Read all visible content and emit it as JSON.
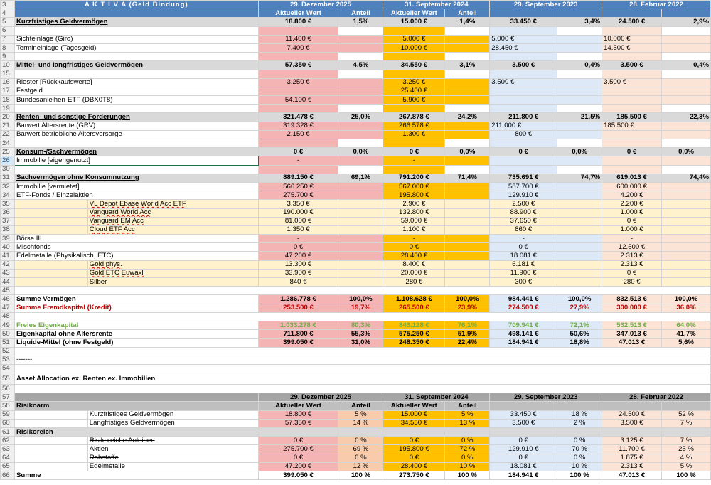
{
  "title": "A K T I V A (Geld Bindung)",
  "dates": [
    "29. Dezember 2025",
    "31. September 2024",
    "29. September 2023",
    "28. Februar 2022"
  ],
  "sub": {
    "wert": "Aktueller Wert",
    "anteil": "Anteil"
  },
  "r5": {
    "n": "Kurzfristiges Geldvermögen",
    "v": [
      "18.800 €",
      "1,5%",
      "15.000 €",
      "1,4%",
      "33.450 €",
      "3,4%",
      "24.500 €",
      "2,9%"
    ]
  },
  "r7": {
    "n": "Sichteinlage (Giro)",
    "v": [
      "11.400 €",
      "5.000 €",
      "5.000 €",
      "10.000 €"
    ]
  },
  "r8": {
    "n": "Termineinlage (Tagesgeld)",
    "v": [
      "7.400 €",
      "10.000 €",
      "28.450 €",
      "14.500 €"
    ]
  },
  "r10": {
    "n": "Mittel- und langfristiges Geldvermögen",
    "v": [
      "57.350 €",
      "4,5%",
      "34.550 €",
      "3,1%",
      "3.500 €",
      "0,4%",
      "3.500 €",
      "0,4%"
    ]
  },
  "r16": {
    "n": "Riester [Rückkaufswerte]",
    "v": [
      "3.250 €",
      "3.250 €",
      "3.500 €",
      "3.500 €"
    ]
  },
  "r17": {
    "n": "Festgeld",
    "v": [
      "25.400 €"
    ]
  },
  "r18": {
    "n": "Bundesanleihen-ETF (DBX0T8)",
    "v": [
      "54.100 €",
      "5.900 €"
    ]
  },
  "r20": {
    "n": "Renten- und sonstige Forderungen",
    "v": [
      "321.478 €",
      "25,0%",
      "267.878 €",
      "24,2%",
      "211.800 €",
      "21,5%",
      "185.500 €",
      "22,3%"
    ]
  },
  "r21": {
    "n": "Barwert Altersrente (GRV)",
    "v": [
      "319.328 €",
      "266.578 €",
      "211.000 €",
      "185.500 €"
    ]
  },
  "r22": {
    "n": "Barwert betriebliche Altersvorsorge",
    "v": [
      "2.150 €",
      "1.300 €",
      "800 €"
    ]
  },
  "r25": {
    "n": "Konsum-/Sachvermögen",
    "v": [
      "0 €",
      "0,0%",
      "0 €",
      "0,0%",
      "0 €",
      "0,0%",
      "0 €",
      "0,0%"
    ]
  },
  "r26": {
    "n": "Immobilie [eigengenutzt]",
    "v": [
      "-",
      "-"
    ]
  },
  "r31": {
    "n": "Sachvermögen ohne Konsumnutzung",
    "v": [
      "889.150 €",
      "69,1%",
      "791.200 €",
      "71,4%",
      "735.691 €",
      "74,7%",
      "619.013 €",
      "74,4%"
    ]
  },
  "r32": {
    "n": "Immobilie [vermietet]",
    "v": [
      "566.250 €",
      "567.000 €",
      "587.700 €",
      "600.000 €"
    ]
  },
  "r34": {
    "n": "ETF-Fonds / Einzelaktien",
    "v": [
      "275.700 €",
      "195.800 €",
      "129.910 €",
      "4.200 €"
    ]
  },
  "r35": {
    "n": "VL Depot Ebase World Acc ETF",
    "v": [
      "3.350 €",
      "2.900 €",
      "2.500 €",
      "2.200 €"
    ]
  },
  "r36": {
    "n": "Vanguard World Acc",
    "v": [
      "190.000 €",
      "132.800 €",
      "88.900 €",
      "1.000 €"
    ]
  },
  "r37": {
    "n": "Vanguard EM Acc",
    "v": [
      "81.000 €",
      "59.000 €",
      "37.650 €",
      "0 €"
    ]
  },
  "r38": {
    "n": "Cloud ETF Acc",
    "v": [
      "1.350 €",
      "1.100 €",
      "860 €",
      "1.000 €"
    ]
  },
  "r39": {
    "n": "Börse III",
    "v": [
      "-",
      "-",
      "-",
      "-"
    ]
  },
  "r40": {
    "n": "Mischfonds",
    "v": [
      "0 €",
      "0 €",
      "0 €",
      "12.500 €"
    ]
  },
  "r41": {
    "n": "Edelmetalle (Physikalisch, ETC)",
    "v": [
      "47.200 €",
      "28.400 €",
      "18.081 €",
      "2.313 €"
    ]
  },
  "r42": {
    "n": "Gold phys.",
    "v": [
      "13.300 €",
      "8.400 €",
      "6.181 €",
      "2.313 €"
    ]
  },
  "r43": {
    "n": "Gold ETC Euwaxll",
    "v": [
      "33.900 €",
      "20.000 €",
      "11.900 €",
      "0 €"
    ]
  },
  "r44": {
    "n": "Silber",
    "v": [
      "840 €",
      "280 €",
      "300 €",
      "280 €"
    ]
  },
  "r46": {
    "n": "Summe Vermögen",
    "v": [
      "1.286.778 €",
      "100,0%",
      "1.108.628 €",
      "100,0%",
      "984.441 €",
      "100,0%",
      "832.513 €",
      "100,0%"
    ]
  },
  "r47": {
    "n": "Summe Fremdkapital (Kredit)",
    "v": [
      "253.500 €",
      "19,7%",
      "265.500 €",
      "23,9%",
      "274.500 €",
      "27,9%",
      "300.000 €",
      "36,0%"
    ]
  },
  "r49": {
    "n": "Freies Eigenkapital",
    "v": [
      "1.033.278 €",
      "80,3%",
      "843.128 €",
      "76,1%",
      "709.941 €",
      "72,1%",
      "532.513 €",
      "64,0%"
    ]
  },
  "r50": {
    "n": "Eigenkapital ohne Altersrente",
    "v": [
      "711.800 €",
      "55,3%",
      "575.250 €",
      "51,9%",
      "498.141 €",
      "50,6%",
      "347.013 €",
      "41,7%"
    ]
  },
  "r51": {
    "n": "Liquide-Mittel (ohne Festgeld)",
    "v": [
      "399.050 €",
      "31,0%",
      "248.350 €",
      "22,4%",
      "184.941 €",
      "18,8%",
      "47.013 €",
      "5,6%"
    ]
  },
  "r53": "-------",
  "r55": "Asset Allocation ex. Renten ex. Immobilien",
  "r58": "Risikoarm",
  "r59": {
    "n": "Kurzfristiges Geldvermögen",
    "v": [
      "18.800 €",
      "5 %",
      "15.000 €",
      "5 %",
      "33.450 €",
      "18 %",
      "24.500 €",
      "52 %"
    ]
  },
  "r60": {
    "n": "Langfristiges Geldvermögen",
    "v": [
      "57.350 €",
      "14 %",
      "34.550 €",
      "13 %",
      "3.500 €",
      "2 %",
      "3.500 €",
      "7 %"
    ]
  },
  "r61": "Risikoreich",
  "r62": {
    "n": "Risikoreiche Anleihen",
    "v": [
      "0 €",
      "0 %",
      "0 €",
      "0 %",
      "0 €",
      "0 %",
      "3.125 €",
      "7 %"
    ]
  },
  "r63": {
    "n": "Aktien",
    "v": [
      "275.700 €",
      "69 %",
      "195.800 €",
      "72 %",
      "129.910 €",
      "70 %",
      "11.700 €",
      "25 %"
    ]
  },
  "r64": {
    "n": "Rohstoffe",
    "v": [
      "0 €",
      "0 %",
      "0 €",
      "0 %",
      "0 €",
      "0 %",
      "1.875 €",
      "4 %"
    ]
  },
  "r65": {
    "n": "Edelmetalle",
    "v": [
      "47.200 €",
      "12 %",
      "28.400 €",
      "10 %",
      "18.081 €",
      "10 %",
      "2.313 €",
      "5 %"
    ]
  },
  "r66": {
    "n": "Summe",
    "v": [
      "399.050 €",
      "100 %",
      "273.750 €",
      "100 %",
      "184.941 €",
      "100 %",
      "47.013 €",
      "100 %"
    ]
  },
  "rownums": [
    "3",
    "4",
    "5",
    "6",
    "7",
    "8",
    "9",
    "10",
    "15",
    "16",
    "17",
    "18",
    "19",
    "20",
    "21",
    "22",
    "24",
    "25",
    "26",
    "30",
    "31",
    "32",
    "34",
    "35",
    "36",
    "37",
    "38",
    "39",
    "40",
    "41",
    "42",
    "43",
    "44",
    "45",
    "46",
    "47",
    "48",
    "49",
    "50",
    "51",
    "52",
    "53",
    "54",
    "55",
    "56",
    "57",
    "58",
    "59",
    "60",
    "61",
    "62",
    "63",
    "64",
    "65",
    "66"
  ]
}
